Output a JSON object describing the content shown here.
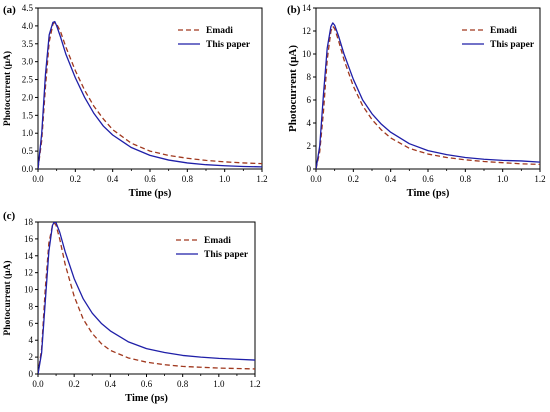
{
  "chart_data": [
    {
      "type": "line",
      "panel_label": "(a)",
      "xlabel": "Time (ps)",
      "ylabel": "Photocurrent (μA)",
      "xlim": [
        0,
        1.2
      ],
      "ylim": [
        0,
        4.5
      ],
      "xticks": [
        0.0,
        0.2,
        0.4,
        0.6,
        0.8,
        1.0,
        1.2
      ],
      "xtick_labels": [
        "0.0",
        "0.2",
        "0.4",
        "0.6",
        "0.8",
        "1.0",
        "1.2"
      ],
      "yticks": [
        0,
        0.5,
        1,
        1.5,
        2,
        2.5,
        3,
        3.5,
        4,
        4.5
      ],
      "ytick_labels": [
        "0.0",
        "0.5",
        "1.0",
        "1.5",
        "2.0",
        "2.5",
        "3.0",
        "3.5",
        "4.0",
        "4.5"
      ],
      "legend_position": "top-right",
      "grid": false,
      "series": [
        {
          "name": "Emadi",
          "color": "#a0381e",
          "style": "dashed",
          "x": [
            0,
            0.02,
            0.04,
            0.06,
            0.08,
            0.09,
            0.1,
            0.12,
            0.15,
            0.2,
            0.25,
            0.3,
            0.35,
            0.4,
            0.5,
            0.6,
            0.7,
            0.8,
            0.9,
            1.0,
            1.1,
            1.2
          ],
          "y": [
            0,
            0.8,
            2.3,
            3.55,
            4.05,
            4.1,
            4.05,
            3.85,
            3.4,
            2.75,
            2.2,
            1.75,
            1.4,
            1.1,
            0.72,
            0.5,
            0.38,
            0.3,
            0.24,
            0.2,
            0.17,
            0.15
          ]
        },
        {
          "name": "This paper",
          "color": "#1f1fa8",
          "style": "solid",
          "x": [
            0,
            0.02,
            0.04,
            0.06,
            0.08,
            0.09,
            0.1,
            0.12,
            0.15,
            0.2,
            0.25,
            0.3,
            0.35,
            0.4,
            0.5,
            0.6,
            0.7,
            0.8,
            0.9,
            1.0,
            1.1,
            1.2
          ],
          "y": [
            0,
            1.0,
            2.65,
            3.75,
            4.1,
            4.12,
            4.0,
            3.7,
            3.2,
            2.55,
            2.0,
            1.55,
            1.2,
            0.95,
            0.6,
            0.38,
            0.25,
            0.17,
            0.12,
            0.09,
            0.07,
            0.06
          ]
        }
      ]
    },
    {
      "type": "line",
      "panel_label": "(b)",
      "xlabel": "Time (ps)",
      "ylabel": "Photocurrent (μA)",
      "xlim": [
        0,
        1.2
      ],
      "ylim": [
        0,
        14
      ],
      "xticks": [
        0.0,
        0.2,
        0.4,
        0.6,
        0.8,
        1.0,
        1.2
      ],
      "xtick_labels": [
        "0.0",
        "0.2",
        "0.4",
        "0.6",
        "0.8",
        "1.0",
        "1.2"
      ],
      "yticks": [
        0,
        2,
        4,
        6,
        8,
        10,
        12,
        14
      ],
      "ytick_labels": [
        "0",
        "2",
        "4",
        "6",
        "8",
        "10",
        "12",
        "14"
      ],
      "legend_position": "top-right",
      "grid": false,
      "series": [
        {
          "name": "Emadi",
          "color": "#a0381e",
          "style": "dashed",
          "x": [
            0,
            0.02,
            0.04,
            0.06,
            0.08,
            0.09,
            0.1,
            0.12,
            0.15,
            0.2,
            0.25,
            0.3,
            0.35,
            0.4,
            0.5,
            0.6,
            0.7,
            0.8,
            0.9,
            1.0,
            1.1,
            1.2
          ],
          "y": [
            0,
            1.5,
            5.0,
            9.5,
            12.0,
            12.4,
            12.2,
            11.2,
            9.5,
            7.2,
            5.5,
            4.3,
            3.4,
            2.7,
            1.8,
            1.3,
            1.0,
            0.8,
            0.65,
            0.55,
            0.45,
            0.4
          ]
        },
        {
          "name": "This paper",
          "color": "#1f1fa8",
          "style": "solid",
          "x": [
            0,
            0.02,
            0.04,
            0.06,
            0.08,
            0.09,
            0.1,
            0.12,
            0.15,
            0.2,
            0.25,
            0.3,
            0.35,
            0.4,
            0.5,
            0.6,
            0.7,
            0.8,
            0.9,
            1.0,
            1.1,
            1.2
          ],
          "y": [
            0,
            2.0,
            6.5,
            10.5,
            12.4,
            12.7,
            12.5,
            11.6,
            10.0,
            7.8,
            6.0,
            4.8,
            3.9,
            3.2,
            2.2,
            1.6,
            1.25,
            1.0,
            0.85,
            0.75,
            0.7,
            0.6
          ]
        }
      ]
    },
    {
      "type": "line",
      "panel_label": "(c)",
      "xlabel": "Time (ps)",
      "ylabel": "Photocurrent (μA)",
      "xlim": [
        0,
        1.2
      ],
      "ylim": [
        0,
        18
      ],
      "xticks": [
        0.0,
        0.2,
        0.4,
        0.6,
        0.8,
        1.0,
        1.2
      ],
      "xtick_labels": [
        "0.0",
        "0.2",
        "0.4",
        "0.6",
        "0.8",
        "1.0",
        "1.2"
      ],
      "yticks": [
        0,
        2,
        4,
        6,
        8,
        10,
        12,
        14,
        16,
        18
      ],
      "ytick_labels": [
        "0",
        "2",
        "4",
        "6",
        "8",
        "10",
        "12",
        "14",
        "16",
        "18"
      ],
      "legend_position": "top-right",
      "grid": false,
      "series": [
        {
          "name": "Emadi",
          "color": "#a0381e",
          "style": "dashed",
          "x": [
            0,
            0.02,
            0.04,
            0.06,
            0.08,
            0.09,
            0.1,
            0.12,
            0.15,
            0.2,
            0.25,
            0.3,
            0.35,
            0.4,
            0.5,
            0.6,
            0.7,
            0.8,
            0.9,
            1.0,
            1.1,
            1.2
          ],
          "y": [
            0,
            3.0,
            10.0,
            15.5,
            17.6,
            17.9,
            17.6,
            16.0,
            13.0,
            9.2,
            6.5,
            4.8,
            3.6,
            2.8,
            1.9,
            1.4,
            1.1,
            0.9,
            0.8,
            0.7,
            0.65,
            0.6
          ]
        },
        {
          "name": "This paper",
          "color": "#1f1fa8",
          "style": "solid",
          "x": [
            0,
            0.02,
            0.04,
            0.06,
            0.08,
            0.09,
            0.1,
            0.12,
            0.15,
            0.2,
            0.25,
            0.3,
            0.35,
            0.4,
            0.5,
            0.6,
            0.7,
            0.8,
            0.9,
            1.0,
            1.1,
            1.2
          ],
          "y": [
            0,
            2.5,
            8.5,
            14.5,
            17.6,
            18.0,
            17.9,
            16.8,
            14.5,
            11.3,
            8.9,
            7.2,
            6.0,
            5.1,
            3.8,
            3.0,
            2.55,
            2.2,
            2.0,
            1.85,
            1.75,
            1.65
          ]
        }
      ]
    }
  ]
}
